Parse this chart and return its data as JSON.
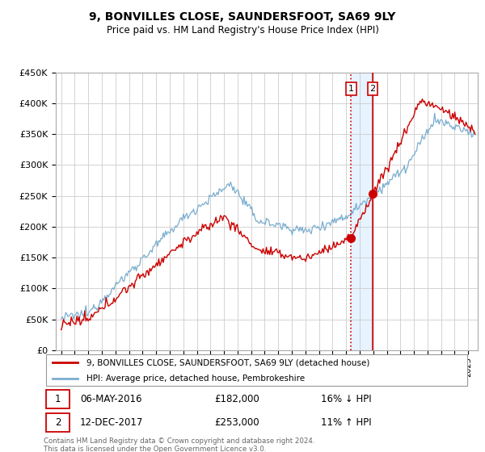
{
  "title": "9, BONVILLES CLOSE, SAUNDERSFOOT, SA69 9LY",
  "subtitle": "Price paid vs. HM Land Registry's House Price Index (HPI)",
  "legend_line1": "9, BONVILLES CLOSE, SAUNDERSFOOT, SA69 9LY (detached house)",
  "legend_line2": "HPI: Average price, detached house, Pembrokeshire",
  "transaction1_date": "06-MAY-2016",
  "transaction1_price": "£182,000",
  "transaction1_hpi": "16% ↓ HPI",
  "transaction2_date": "12-DEC-2017",
  "transaction2_price": "£253,000",
  "transaction2_hpi": "11% ↑ HPI",
  "footer": "Contains HM Land Registry data © Crown copyright and database right 2024.\nThis data is licensed under the Open Government Licence v3.0.",
  "price_color": "#cc0000",
  "hpi_color": "#7aadcf",
  "vline1_color": "#cc0000",
  "vline2_color": "#cc0000",
  "shade_color": "#ddeeff",
  "marker_color": "#cc0000",
  "ylim": [
    0,
    450000
  ],
  "yticks": [
    0,
    50000,
    100000,
    150000,
    200000,
    250000,
    300000,
    350000,
    400000,
    450000
  ],
  "transaction1_x": 2016.37,
  "transaction2_x": 2017.95,
  "transaction1_y": 182000,
  "transaction2_y": 253000,
  "xlim_left": 1994.6,
  "xlim_right": 2025.7
}
